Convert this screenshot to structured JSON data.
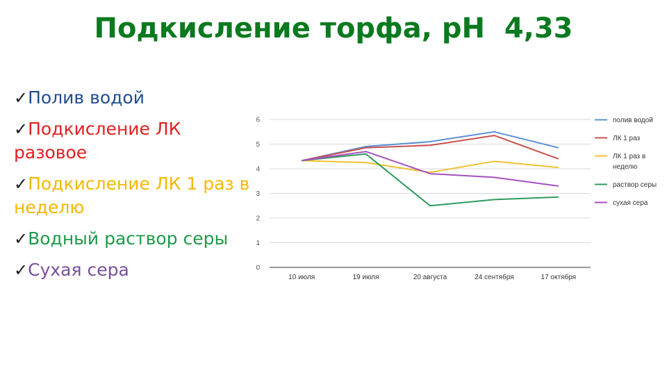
{
  "slide": {
    "title": "Подкисление торфа, рН  4,33",
    "check_glyph": "✓",
    "bullets": [
      {
        "text": "Полив водой",
        "color": "#1f4e8c"
      },
      {
        "text": "Подкисление ЛК разовое",
        "color": "#e02020"
      },
      {
        "text": "Подкисление ЛК 1 раз в неделю",
        "color": "#f5b800"
      },
      {
        "text": "Водный раствор серы",
        "color": "#1e9a4a"
      },
      {
        "text": "Сухая сера",
        "color": "#7a4e9e"
      }
    ]
  },
  "chart_data": {
    "type": "line",
    "categories": [
      "10 июля",
      "19 июля",
      "20 августа",
      "24 сентября",
      "17 октября"
    ],
    "ylim": [
      0,
      6
    ],
    "yticks": [
      "0",
      "1",
      "2",
      "3",
      "4",
      "5",
      "6"
    ],
    "grid": true,
    "legend_position": "right",
    "series": [
      {
        "name": "полив водой",
        "color": "#5b8fd6",
        "values": [
          4.33,
          4.9,
          5.1,
          5.5,
          4.85
        ]
      },
      {
        "name": "ЛК 1 раз",
        "color": "#c8504c",
        "values": [
          4.33,
          4.85,
          4.95,
          5.35,
          4.4
        ]
      },
      {
        "name": "ЛК 1 раз в неделю",
        "color": "#f2c12e",
        "values": [
          4.33,
          4.25,
          3.85,
          4.3,
          4.05
        ]
      },
      {
        "name": "раствор серы",
        "color": "#2e9a5e",
        "values": [
          4.33,
          4.6,
          2.5,
          2.75,
          2.85
        ]
      },
      {
        "name": "сухая сера",
        "color": "#a64fbf",
        "values": [
          4.33,
          4.7,
          3.8,
          3.65,
          3.3
        ]
      }
    ]
  }
}
